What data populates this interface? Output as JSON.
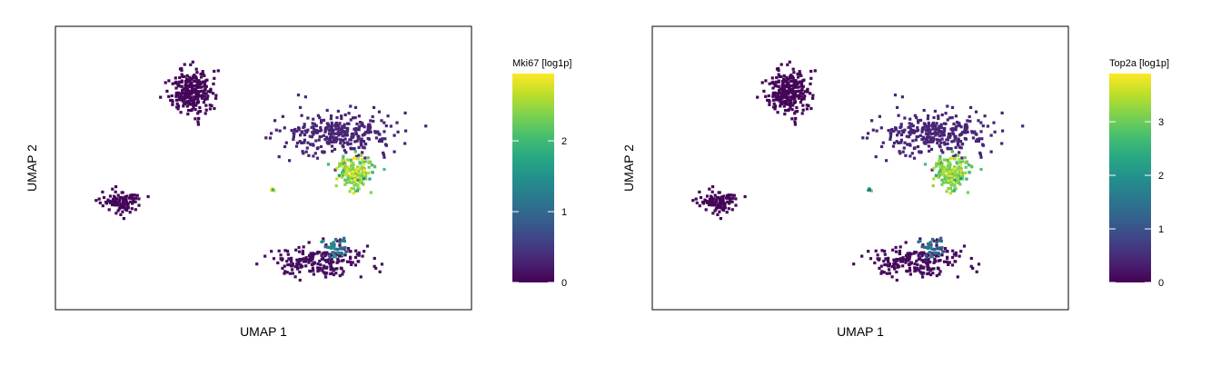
{
  "chart_data": [
    {
      "type": "scatter",
      "title": "",
      "xlabel": "UMAP 1",
      "ylabel": "UMAP 2",
      "colorbar": {
        "label": "Mki67 [log1p]",
        "colormap": "viridis",
        "range": [
          0,
          2.95
        ],
        "ticks": [
          0,
          1,
          2
        ],
        "tick_labels": [
          "0",
          "1",
          "2"
        ]
      },
      "grid": false,
      "axis_ticks_shown": false,
      "xlim": [
        0,
        12
      ],
      "ylim": [
        0,
        8
      ],
      "clusters": [
        {
          "x": 3.7,
          "y": 6.5,
          "value": 0.05
        },
        {
          "x": 1.5,
          "y": 2.9,
          "value": 0.05
        },
        {
          "x": 8.4,
          "y": 5.1,
          "value": 0.3
        },
        {
          "x": 8.9,
          "y": 3.8,
          "value": 2.4
        },
        {
          "x": 6.3,
          "y": 3.3,
          "value": 2.6
        },
        {
          "x": 7.7,
          "y": 1.0,
          "value": 0.1
        },
        {
          "x": 8.3,
          "y": 1.4,
          "value": 1.2
        }
      ]
    },
    {
      "type": "scatter",
      "title": "",
      "xlabel": "UMAP 1",
      "ylabel": "UMAP 2",
      "colorbar": {
        "label": "Top2a [log1p]",
        "colormap": "viridis",
        "range": [
          0,
          3.9
        ],
        "ticks": [
          0,
          1,
          2,
          3
        ],
        "tick_labels": [
          "0",
          "1",
          "2",
          "3"
        ]
      },
      "grid": false,
      "axis_ticks_shown": false,
      "xlim": [
        0,
        12
      ],
      "ylim": [
        0,
        8
      ],
      "clusters": [
        {
          "x": 3.7,
          "y": 6.5,
          "value": 0.05
        },
        {
          "x": 1.5,
          "y": 2.9,
          "value": 0.05
        },
        {
          "x": 8.4,
          "y": 5.1,
          "value": 0.4
        },
        {
          "x": 8.9,
          "y": 3.8,
          "value": 3.1
        },
        {
          "x": 6.3,
          "y": 3.3,
          "value": 2.0
        },
        {
          "x": 7.7,
          "y": 1.0,
          "value": 0.1
        },
        {
          "x": 8.3,
          "y": 1.4,
          "value": 1.3
        }
      ]
    }
  ],
  "colors": {
    "viridis": [
      "#440154",
      "#482878",
      "#3e4989",
      "#31688e",
      "#26828e",
      "#1f9e89",
      "#35b779",
      "#6ece58",
      "#b5de2b",
      "#fde725"
    ]
  }
}
